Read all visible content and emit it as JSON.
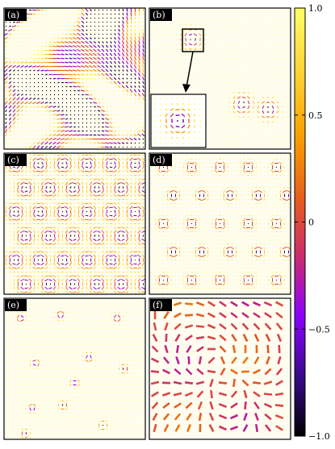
{
  "figure": {
    "panels": [
      {
        "label": "(a)",
        "pattern": "stripe-maze"
      },
      {
        "label": "(b)",
        "pattern": "isolated-skyrmions-with-inset"
      },
      {
        "label": "(c)",
        "pattern": "dense-skyrmion-lattice"
      },
      {
        "label": "(d)",
        "pattern": "medium-skyrmion-lattice"
      },
      {
        "label": "(e)",
        "pattern": "sparse-skyrmions"
      },
      {
        "label": "(f)",
        "pattern": "large-arrow-texture"
      }
    ],
    "colorbar": {
      "min": -1.0,
      "max": 1.0,
      "ticks": [
        "1.0",
        "0.5",
        "0",
        "−0.5",
        "−1.0"
      ],
      "colors": [
        "#000000",
        "#3a0a8a",
        "#8b00ff",
        "#cc2b6e",
        "#e8601a",
        "#f7a000",
        "#ffd030",
        "#ffff66"
      ]
    }
  }
}
